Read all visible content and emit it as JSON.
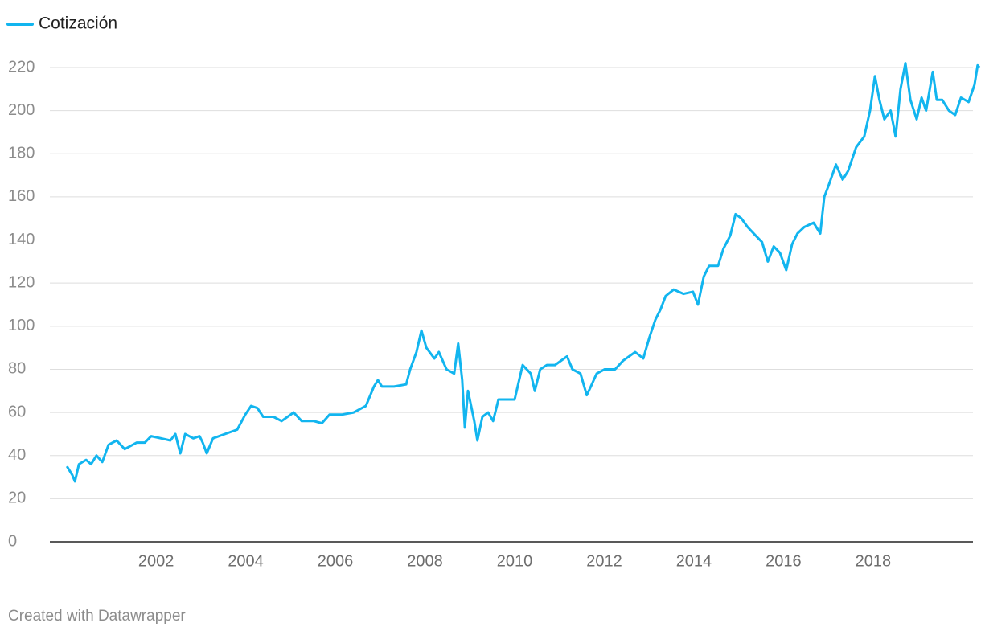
{
  "chart_data": {
    "type": "line",
    "legend": "top-left",
    "grid": true,
    "footer": "Created with Datawrapper",
    "xlim": [
      1999.63,
      2020.37
    ],
    "xticks": [
      2002,
      2004,
      2006,
      2008,
      2010,
      2012,
      2014,
      2016,
      2018
    ],
    "ylim": [
      0,
      220
    ],
    "yticks": [
      0,
      20,
      40,
      60,
      80,
      100,
      120,
      140,
      160,
      180,
      200,
      220
    ],
    "x": [
      2000.01,
      2000.13,
      2000.19,
      2000.28,
      2000.44,
      2000.55,
      2000.67,
      2000.8,
      2000.94,
      2001.12,
      2001.3,
      2001.57,
      2001.75,
      2001.89,
      2002.11,
      2002.32,
      2002.43,
      2002.54,
      2002.65,
      2002.83,
      2002.97,
      2003.04,
      2003.13,
      2003.27,
      2003.54,
      2003.81,
      2003.99,
      2004.12,
      2004.26,
      2004.39,
      2004.62,
      2004.8,
      2005.07,
      2005.25,
      2005.52,
      2005.7,
      2005.87,
      2006.14,
      2006.41,
      2006.68,
      2006.86,
      2006.95,
      2007.04,
      2007.31,
      2007.58,
      2007.67,
      2007.81,
      2007.92,
      2008.03,
      2008.21,
      2008.31,
      2008.48,
      2008.65,
      2008.74,
      2008.83,
      2008.89,
      2008.96,
      2009.1,
      2009.17,
      2009.28,
      2009.41,
      2009.52,
      2009.64,
      2009.82,
      2010.0,
      2010.18,
      2010.36,
      2010.45,
      2010.57,
      2010.72,
      2010.9,
      2011.17,
      2011.29,
      2011.47,
      2011.61,
      2011.7,
      2011.83,
      2012.01,
      2012.24,
      2012.42,
      2012.69,
      2012.87,
      2013.01,
      2013.14,
      2013.26,
      2013.37,
      2013.55,
      2013.77,
      2013.98,
      2014.09,
      2014.22,
      2014.34,
      2014.54,
      2014.66,
      2014.81,
      2014.93,
      2015.06,
      2015.2,
      2015.38,
      2015.52,
      2015.65,
      2015.78,
      2015.92,
      2016.06,
      2016.19,
      2016.31,
      2016.46,
      2016.67,
      2016.82,
      2016.91,
      2017.0,
      2017.17,
      2017.32,
      2017.44,
      2017.62,
      2017.8,
      2017.93,
      2018.04,
      2018.14,
      2018.25,
      2018.39,
      2018.5,
      2018.61,
      2018.72,
      2018.83,
      2018.97,
      2019.08,
      2019.18,
      2019.33,
      2019.42,
      2019.54,
      2019.69,
      2019.83,
      2019.96,
      2020.13,
      2020.26,
      2020.33,
      2020.37
    ],
    "series": [
      {
        "name": "Cotización",
        "color": "#12b5ef",
        "values": [
          35,
          31,
          28,
          36,
          38,
          36,
          40,
          37,
          45,
          47,
          43,
          46,
          46,
          49,
          48,
          47,
          50,
          41,
          50,
          48,
          49,
          46,
          41,
          48,
          50,
          52,
          59,
          63,
          62,
          58,
          58,
          56,
          60,
          56,
          56,
          55,
          59,
          59,
          60,
          63,
          72,
          75,
          72,
          72,
          73,
          80,
          88,
          98,
          90,
          85,
          88,
          80,
          78,
          92,
          75,
          53,
          70,
          56,
          47,
          58,
          60,
          56,
          66,
          66,
          66,
          82,
          78,
          70,
          80,
          82,
          82,
          86,
          80,
          78,
          68,
          72,
          78,
          80,
          80,
          84,
          88,
          85,
          95,
          103,
          108,
          114,
          117,
          115,
          116,
          110,
          123,
          128,
          128,
          136,
          142,
          152,
          150,
          146,
          142,
          139,
          130,
          137,
          134,
          126,
          138,
          143,
          146,
          148,
          143,
          160,
          165,
          175,
          168,
          172,
          183,
          188,
          200,
          216,
          205,
          196,
          200,
          188,
          210,
          222,
          205,
          196,
          206,
          200,
          218,
          205,
          205,
          200,
          198,
          206,
          204,
          212,
          221,
          220
        ]
      }
    ]
  }
}
